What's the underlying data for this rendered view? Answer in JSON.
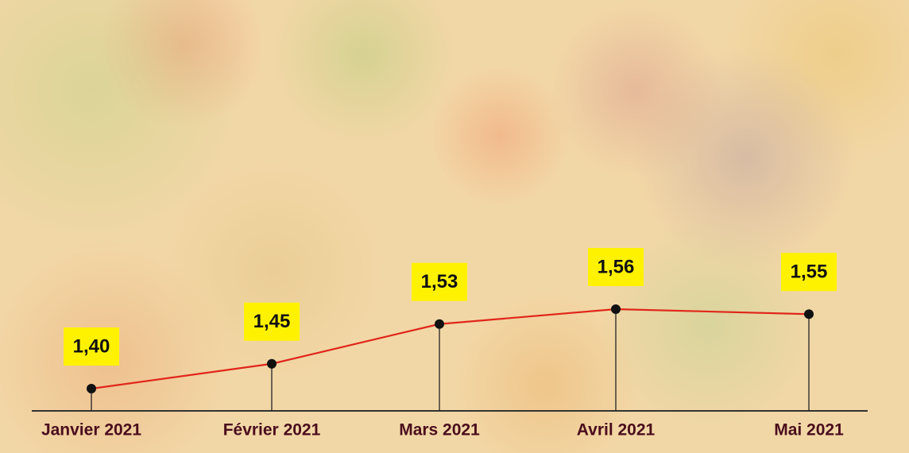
{
  "chart_data": {
    "type": "line",
    "categories": [
      "Janvier 2021",
      "Février 2021",
      "Mars 2021",
      "Avril 2021",
      "Mai 2021"
    ],
    "values": [
      1.4,
      1.45,
      1.53,
      1.56,
      1.55
    ],
    "value_labels": [
      "1,40",
      "1,45",
      "1,53",
      "1,56",
      "1,55"
    ],
    "color": "#e0261b"
  }
}
